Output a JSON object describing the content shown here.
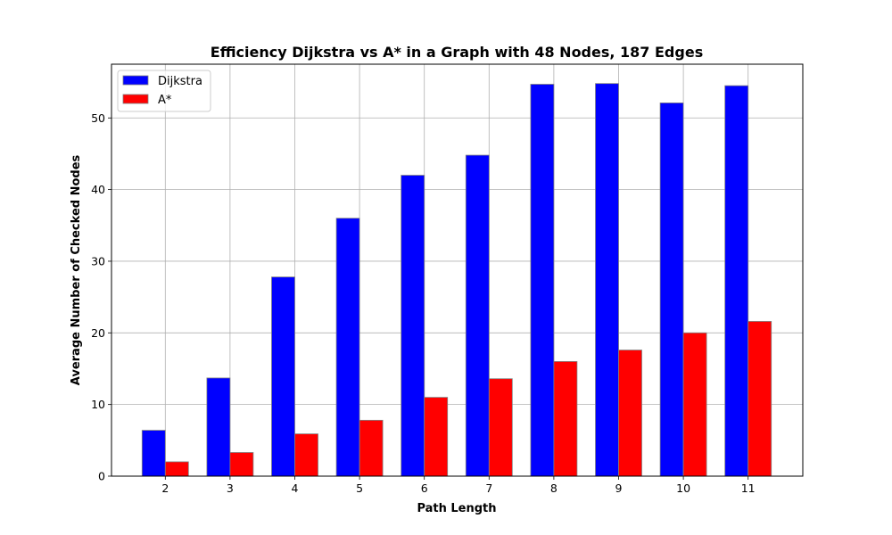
{
  "chart_data": {
    "type": "bar",
    "title": "Efficiency Dijkstra vs A* in a Graph with 48 Nodes, 187 Edges",
    "xlabel": "Path Length",
    "ylabel": "Average Number of Checked Nodes",
    "categories": [
      "2",
      "3",
      "4",
      "5",
      "6",
      "7",
      "8",
      "9",
      "10",
      "11"
    ],
    "yticks": [
      "0",
      "10",
      "20",
      "30",
      "40",
      "50"
    ],
    "ylim": [
      0,
      57.5
    ],
    "grid": true,
    "legend_position": "top-left",
    "series": [
      {
        "name": "Dijkstra",
        "color": "#0000ff",
        "values": [
          6.4,
          13.7,
          27.8,
          36.0,
          42.0,
          44.8,
          54.7,
          54.8,
          52.1,
          54.5
        ]
      },
      {
        "name": "A*",
        "color": "#ff0000",
        "values": [
          2.0,
          3.3,
          5.9,
          7.8,
          11.0,
          13.6,
          16.0,
          17.6,
          20.0,
          21.6
        ]
      }
    ]
  }
}
